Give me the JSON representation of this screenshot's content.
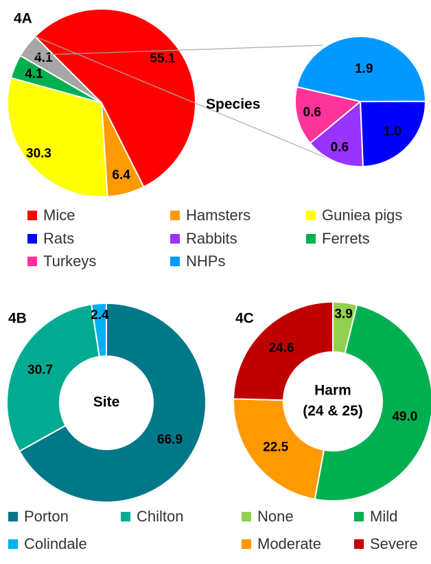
{
  "chart_data": [
    {
      "type": "pie-of-pie",
      "title": "4A",
      "categories": [
        "Mice",
        "Hamsters",
        "Guniea pigs",
        "Ferrets",
        null
      ],
      "values": [
        55.1,
        6.4,
        30.3,
        4.1,
        4.1
      ],
      "colors": [
        "#ff0000",
        "#ff9900",
        "#ffff00",
        "#00b050",
        "#a6a6a6"
      ],
      "sub_title": "Species",
      "sub_categories": [
        "NHPs",
        "Rats",
        "Rabbits",
        "Turkeys"
      ],
      "sub_values": [
        1.9,
        1.0,
        0.6,
        0.6
      ],
      "sub_value_labels": [
        "1.9",
        "1.0",
        "0.6",
        "0.6"
      ],
      "sub_colors": [
        "#0099ff",
        "#0000ff",
        "#9933ff",
        "#ff3399"
      ]
    },
    {
      "type": "donut",
      "title": "4B",
      "center_label": [
        "Site"
      ],
      "categories": [
        "Porton",
        "Chilton",
        "Colindale"
      ],
      "values": [
        66.9,
        30.7,
        2.4
      ],
      "colors": [
        "#00788a",
        "#00ab91",
        "#00b0f0"
      ]
    },
    {
      "type": "donut",
      "title": "4C",
      "center_label": [
        "Harm",
        "(24 & 25)"
      ],
      "categories": [
        "None",
        "Mild",
        "Moderate",
        "Severe"
      ],
      "values": [
        3.9,
        49.0,
        22.5,
        24.6
      ],
      "value_labels": [
        "3.9",
        "49.0",
        "22.5",
        "24.6"
      ],
      "colors": [
        "#92d050",
        "#00b050",
        "#ff9900",
        "#c00000"
      ]
    }
  ]
}
